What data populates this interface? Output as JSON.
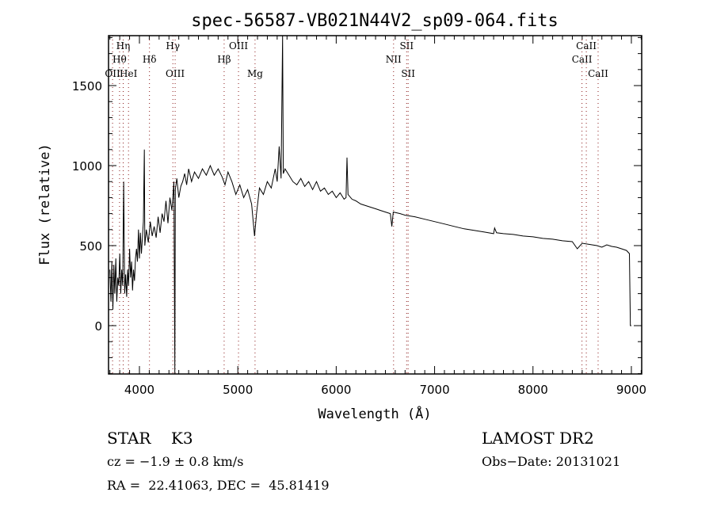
{
  "chart_data": {
    "type": "line",
    "title": "spec-56587-VB021N44V2_sp09-064.fits",
    "xlabel": "Wavelength (Å)",
    "ylabel": "Flux (relative)",
    "xlim": [
      3686,
      9105
    ],
    "ylim": [
      -302,
      1812
    ],
    "xticks": [
      4000,
      5000,
      6000,
      7000,
      8000,
      9000
    ],
    "yticks": [
      0,
      500,
      1000,
      1500
    ],
    "grid": false,
    "line_color": "#000000",
    "marker_color": "#8b1a1a",
    "lines": [
      {
        "label": "OII",
        "wavelength": 3727,
        "row": 3
      },
      {
        "label": "Hθ",
        "wavelength": 3798,
        "row": 2
      },
      {
        "label": "Hη",
        "wavelength": 3835,
        "row": 1
      },
      {
        "label": "HeI",
        "wavelength": 3889,
        "row": 3
      },
      {
        "label": "Hδ",
        "wavelength": 4102,
        "row": 2
      },
      {
        "label": "Hγ",
        "wavelength": 4340,
        "row": 1
      },
      {
        "label": "OIII",
        "wavelength": 4363,
        "row": 3
      },
      {
        "label": "Hβ",
        "wavelength": 4861,
        "row": 2
      },
      {
        "label": "OIII",
        "wavelength": 5007,
        "row": 1
      },
      {
        "label": "Mg",
        "wavelength": 5175,
        "row": 3
      },
      {
        "label": "NII",
        "wavelength": 6583,
        "row": 2
      },
      {
        "label": "SII",
        "wavelength": 6716,
        "row": 1
      },
      {
        "label": "SII",
        "wavelength": 6731,
        "row": 3
      },
      {
        "label": "CaII",
        "wavelength": 8498,
        "row": 2
      },
      {
        "label": "CaII",
        "wavelength": 8542,
        "row": 1
      },
      {
        "label": "CaII",
        "wavelength": 8662,
        "row": 3
      }
    ],
    "series": [
      {
        "name": "flux",
        "points": [
          [
            3700,
            350
          ],
          [
            3710,
            150
          ],
          [
            3720,
            400
          ],
          [
            3730,
            100
          ],
          [
            3740,
            380
          ],
          [
            3750,
            200
          ],
          [
            3760,
            420
          ],
          [
            3770,
            150
          ],
          [
            3780,
            300
          ],
          [
            3790,
            250
          ],
          [
            3800,
            450
          ],
          [
            3810,
            200
          ],
          [
            3820,
            350
          ],
          [
            3830,
            250
          ],
          [
            3840,
            900
          ],
          [
            3850,
            200
          ],
          [
            3860,
            320
          ],
          [
            3870,
            180
          ],
          [
            3880,
            350
          ],
          [
            3890,
            250
          ],
          [
            3900,
            480
          ],
          [
            3910,
            300
          ],
          [
            3920,
            400
          ],
          [
            3930,
            220
          ],
          [
            3940,
            350
          ],
          [
            3950,
            280
          ],
          [
            3960,
            420
          ],
          [
            3970,
            480
          ],
          [
            3980,
            400
          ],
          [
            3990,
            600
          ],
          [
            4000,
            420
          ],
          [
            4010,
            580
          ],
          [
            4020,
            450
          ],
          [
            4040,
            650
          ],
          [
            4050,
            1100
          ],
          [
            4055,
            500
          ],
          [
            4070,
            600
          ],
          [
            4090,
            520
          ],
          [
            4110,
            650
          ],
          [
            4130,
            560
          ],
          [
            4150,
            620
          ],
          [
            4170,
            550
          ],
          [
            4190,
            680
          ],
          [
            4210,
            580
          ],
          [
            4230,
            700
          ],
          [
            4250,
            650
          ],
          [
            4270,
            780
          ],
          [
            4290,
            640
          ],
          [
            4310,
            800
          ],
          [
            4330,
            720
          ],
          [
            4350,
            900
          ],
          [
            4360,
            -300
          ],
          [
            4365,
            850
          ],
          [
            4380,
            920
          ],
          [
            4400,
            800
          ],
          [
            4420,
            870
          ],
          [
            4440,
            900
          ],
          [
            4460,
            950
          ],
          [
            4480,
            880
          ],
          [
            4500,
            980
          ],
          [
            4530,
            900
          ],
          [
            4560,
            960
          ],
          [
            4600,
            920
          ],
          [
            4640,
            980
          ],
          [
            4680,
            940
          ],
          [
            4720,
            1000
          ],
          [
            4760,
            940
          ],
          [
            4800,
            980
          ],
          [
            4840,
            930
          ],
          [
            4870,
            880
          ],
          [
            4900,
            960
          ],
          [
            4940,
            900
          ],
          [
            4980,
            820
          ],
          [
            5020,
            880
          ],
          [
            5060,
            800
          ],
          [
            5100,
            850
          ],
          [
            5140,
            760
          ],
          [
            5170,
            560
          ],
          [
            5190,
            700
          ],
          [
            5220,
            860
          ],
          [
            5260,
            820
          ],
          [
            5300,
            900
          ],
          [
            5340,
            860
          ],
          [
            5380,
            980
          ],
          [
            5400,
            900
          ],
          [
            5420,
            1120
          ],
          [
            5440,
            920
          ],
          [
            5455,
            1810
          ],
          [
            5462,
            950
          ],
          [
            5480,
            980
          ],
          [
            5520,
            940
          ],
          [
            5560,
            900
          ],
          [
            5600,
            880
          ],
          [
            5640,
            920
          ],
          [
            5680,
            870
          ],
          [
            5720,
            900
          ],
          [
            5760,
            850
          ],
          [
            5800,
            900
          ],
          [
            5840,
            840
          ],
          [
            5880,
            860
          ],
          [
            5920,
            820
          ],
          [
            5960,
            840
          ],
          [
            6000,
            800
          ],
          [
            6040,
            830
          ],
          [
            6080,
            790
          ],
          [
            6100,
            800
          ],
          [
            6110,
            1050
          ],
          [
            6120,
            820
          ],
          [
            6160,
            790
          ],
          [
            6200,
            780
          ],
          [
            6250,
            760
          ],
          [
            6300,
            750
          ],
          [
            6350,
            740
          ],
          [
            6400,
            730
          ],
          [
            6450,
            720
          ],
          [
            6500,
            710
          ],
          [
            6550,
            700
          ],
          [
            6565,
            620
          ],
          [
            6580,
            710
          ],
          [
            6650,
            700
          ],
          [
            6700,
            690
          ],
          [
            6800,
            680
          ],
          [
            6900,
            665
          ],
          [
            7000,
            650
          ],
          [
            7100,
            635
          ],
          [
            7200,
            620
          ],
          [
            7300,
            605
          ],
          [
            7400,
            595
          ],
          [
            7500,
            585
          ],
          [
            7600,
            575
          ],
          [
            7610,
            610
          ],
          [
            7630,
            580
          ],
          [
            7700,
            575
          ],
          [
            7800,
            570
          ],
          [
            7900,
            560
          ],
          [
            8000,
            555
          ],
          [
            8100,
            545
          ],
          [
            8200,
            540
          ],
          [
            8300,
            530
          ],
          [
            8400,
            525
          ],
          [
            8450,
            480
          ],
          [
            8500,
            515
          ],
          [
            8550,
            510
          ],
          [
            8600,
            505
          ],
          [
            8650,
            500
          ],
          [
            8700,
            490
          ],
          [
            8750,
            505
          ],
          [
            8800,
            495
          ],
          [
            8850,
            490
          ],
          [
            8900,
            480
          ],
          [
            8950,
            470
          ],
          [
            8980,
            450
          ],
          [
            8990,
            0
          ],
          [
            9000,
            0
          ]
        ]
      }
    ]
  },
  "info": {
    "object_class": "STAR    K3",
    "redshift": "cz = −1.9 ± 0.8 km/s",
    "coords": "RA =  22.41063, DEC =  45.81419",
    "survey": "LAMOST DR2",
    "obs_date": "Obs−Date: 20131021"
  }
}
